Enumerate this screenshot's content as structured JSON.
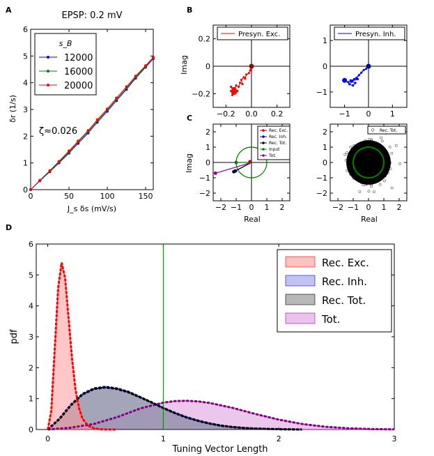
{
  "panel_labels": [
    "A",
    "B",
    "C",
    "D"
  ],
  "chart_data": [
    {
      "id": "A",
      "type": "line",
      "title": "EPSP: 0.2 mV",
      "xlabel": "J_s δs (mV/s)",
      "ylabel": "δr (1/s)",
      "xlim": [
        0,
        160
      ],
      "ylim": [
        0,
        6
      ],
      "xticks": [
        "0",
        "50",
        "100",
        "150"
      ],
      "yticks": [
        "0",
        "1",
        "2",
        "3",
        "4",
        "5",
        "6"
      ],
      "annotation": "ζ≈0.026",
      "legend_title": "s_B",
      "legend_loc": "upper-left",
      "x": [
        0,
        12,
        25,
        37,
        50,
        62,
        75,
        87,
        100,
        112,
        125,
        137,
        150,
        160
      ],
      "series": [
        {
          "name": "12000",
          "color": "#0000ff",
          "values": [
            0,
            0.33,
            0.67,
            1.0,
            1.37,
            1.73,
            2.12,
            2.52,
            2.93,
            3.33,
            3.75,
            4.17,
            4.58,
            4.9
          ]
        },
        {
          "name": "16000",
          "color": "#008000",
          "values": [
            0,
            0.34,
            0.69,
            1.03,
            1.41,
            1.78,
            2.17,
            2.57,
            2.98,
            3.38,
            3.8,
            4.21,
            4.61,
            4.92
          ]
        },
        {
          "name": "20000",
          "color": "#ff0000",
          "values": [
            0,
            0.35,
            0.71,
            1.06,
            1.45,
            1.82,
            2.21,
            2.62,
            3.02,
            3.43,
            3.85,
            4.25,
            4.64,
            4.95
          ]
        }
      ]
    },
    {
      "id": "B-left",
      "type": "scatter",
      "ylabel": "Imag",
      "xlim": [
        -0.3,
        0.3
      ],
      "ylim": [
        -0.3,
        0.3
      ],
      "xticks": [
        "−0.2",
        "0.0",
        "0.2"
      ],
      "yticks": [
        "0.2",
        "0",
        "−0.2"
      ],
      "legend": "Presyn. Exc.",
      "color": "#ff0000",
      "x": [
        0,
        -0.01,
        -0.02,
        -0.04,
        -0.05,
        -0.06,
        -0.08,
        -0.07,
        -0.09,
        -0.1,
        -0.12,
        -0.13,
        -0.11,
        -0.14,
        -0.15,
        -0.13,
        -0.16,
        -0.14,
        -0.12,
        -0.15,
        -0.13,
        -0.16,
        -0.14
      ],
      "y": [
        0,
        -0.03,
        -0.05,
        -0.06,
        -0.09,
        -0.08,
        -0.1,
        -0.13,
        -0.12,
        -0.15,
        -0.14,
        -0.16,
        -0.18,
        -0.17,
        -0.19,
        -0.2,
        -0.18,
        -0.16,
        -0.19,
        -0.21,
        -0.17,
        -0.15,
        -0.19
      ]
    },
    {
      "id": "B-right",
      "type": "scatter",
      "xlim": [
        -1.6,
        1.6
      ],
      "ylim": [
        -1.6,
        1.6
      ],
      "xticks": [
        "−1",
        "0",
        "1"
      ],
      "yticks": [
        "1",
        "0",
        "−1"
      ],
      "legend": "Presyn. Inh.",
      "color": "#0000ff",
      "x": [
        0,
        -0.1,
        -0.2,
        -0.3,
        -0.4,
        -0.5,
        -0.6,
        -0.7,
        -0.8,
        -0.65,
        -0.55,
        -0.75,
        -0.45,
        -0.85,
        -1.0
      ],
      "y": [
        0,
        -0.1,
        -0.15,
        -0.25,
        -0.35,
        -0.45,
        -0.5,
        -0.6,
        -0.7,
        -0.75,
        -0.65,
        -0.55,
        -0.5,
        -0.62,
        -0.55
      ]
    },
    {
      "id": "C-left",
      "type": "line",
      "xlabel": "Real",
      "ylabel": "Imag",
      "xlim": [
        -2.5,
        2.5
      ],
      "ylim": [
        -2.5,
        2.5
      ],
      "xticks": [
        "−2",
        "−1",
        "0",
        "1",
        "2"
      ],
      "yticks": [
        "2",
        "1",
        "0",
        "−1",
        "−2"
      ],
      "legend_loc": "upper-right",
      "circle_radius": 1.0,
      "series": [
        {
          "name": "Rec. Exc.",
          "color": "#cc0000",
          "start": [
            0,
            0
          ],
          "end": [
            -0.1,
            0.05
          ]
        },
        {
          "name": "Rec. Inh.",
          "color": "#0000cc",
          "start": [
            0,
            0
          ],
          "end": [
            -1.05,
            -0.55
          ]
        },
        {
          "name": "Rec. Tot.",
          "color": "#000000",
          "start": [
            0,
            0
          ],
          "end": [
            -1.15,
            -0.6
          ]
        },
        {
          "name": "Input",
          "color": "#008000",
          "start": [
            0,
            0
          ],
          "end": [
            -1.0,
            0.0
          ]
        },
        {
          "name": "Tot.",
          "color": "#990099",
          "start": [
            0,
            0
          ],
          "end": [
            -2.35,
            -0.7
          ]
        }
      ]
    },
    {
      "id": "C-right",
      "type": "scatter",
      "xlabel": "Real",
      "xlim": [
        -2.5,
        2.5
      ],
      "ylim": [
        -2.5,
        2.5
      ],
      "xticks": [
        "−2",
        "−1",
        "0",
        "1",
        "2"
      ],
      "yticks": [
        "2",
        "1",
        "0",
        "−1",
        "−2"
      ],
      "legend": "Rec. Tot.",
      "cloud_radius": 1.8,
      "circle_radius": 1.0
    },
    {
      "id": "D",
      "type": "area",
      "xlabel": "Tuning Vector Length",
      "ylabel": "pdf",
      "xlim": [
        -0.1,
        3.0
      ],
      "ylim": [
        0,
        6
      ],
      "xticks": [
        "0",
        "1",
        "2",
        "3"
      ],
      "yticks": [
        "0",
        "1",
        "2",
        "3",
        "4",
        "5",
        "6"
      ],
      "vline_x": 1.0,
      "legend_loc": "upper-right",
      "series": [
        {
          "name": "Rec. Exc.",
          "fill": "#ff9999",
          "edge": "#ff0000",
          "curve": "#ff0000",
          "x": [
            0,
            0.03,
            0.06,
            0.09,
            0.12,
            0.15,
            0.18,
            0.21,
            0.24,
            0.27,
            0.3,
            0.35,
            0.4,
            0.45,
            0.5,
            0.6
          ],
          "y": [
            0,
            0.6,
            2.6,
            4.6,
            5.4,
            4.9,
            3.6,
            2.3,
            1.3,
            0.7,
            0.35,
            0.12,
            0.04,
            0.01,
            0,
            0
          ]
        },
        {
          "name": "Rec. Inh.",
          "fill": "#9999ee",
          "edge": "#0000ff",
          "curve": "#000080",
          "x": [
            0,
            0.1,
            0.2,
            0.3,
            0.4,
            0.5,
            0.6,
            0.7,
            0.8,
            0.9,
            1.0,
            1.1,
            1.2,
            1.3,
            1.4,
            1.5,
            1.6,
            1.7,
            1.8,
            2.0,
            2.2
          ],
          "y": [
            0,
            0.35,
            0.8,
            1.15,
            1.33,
            1.38,
            1.33,
            1.22,
            1.05,
            0.88,
            0.7,
            0.54,
            0.4,
            0.29,
            0.2,
            0.13,
            0.08,
            0.05,
            0.03,
            0.01,
            0
          ]
        },
        {
          "name": "Rec. Tot.",
          "fill": "#888888",
          "edge": "#000000",
          "curve": "#000000",
          "x": [
            0,
            0.1,
            0.2,
            0.3,
            0.4,
            0.5,
            0.6,
            0.7,
            0.8,
            0.9,
            1.0,
            1.1,
            1.2,
            1.3,
            1.4,
            1.5,
            1.6,
            1.7,
            1.8,
            2.0,
            2.2
          ],
          "y": [
            0,
            0.33,
            0.78,
            1.13,
            1.31,
            1.36,
            1.31,
            1.2,
            1.04,
            0.87,
            0.69,
            0.53,
            0.39,
            0.28,
            0.19,
            0.12,
            0.08,
            0.05,
            0.03,
            0.01,
            0
          ]
        },
        {
          "name": "Tot.",
          "fill": "#dd99dd",
          "edge": "#990099",
          "curve": "#800080",
          "x": [
            0,
            0.2,
            0.4,
            0.6,
            0.8,
            1.0,
            1.1,
            1.2,
            1.3,
            1.4,
            1.6,
            1.8,
            2.0,
            2.2,
            2.4,
            2.6,
            2.8,
            3.0
          ],
          "y": [
            0,
            0.06,
            0.18,
            0.4,
            0.68,
            0.87,
            0.92,
            0.93,
            0.91,
            0.86,
            0.7,
            0.5,
            0.32,
            0.18,
            0.09,
            0.04,
            0.015,
            0.005
          ]
        }
      ]
    }
  ]
}
